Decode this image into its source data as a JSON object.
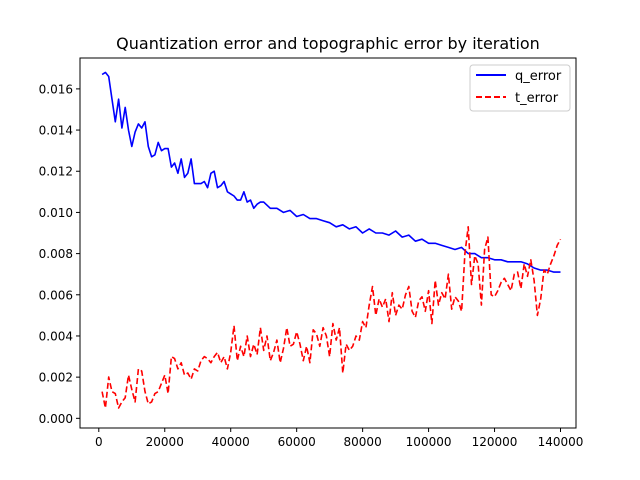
{
  "chart_data": {
    "type": "line",
    "title": "Quantization error and topographic error by iteration",
    "xlabel": "",
    "ylabel": "",
    "xlim": [
      -5700,
      144700
    ],
    "ylim": [
      -0.00047,
      0.0175
    ],
    "x_ticks": [
      0,
      20000,
      40000,
      60000,
      80000,
      100000,
      120000,
      140000
    ],
    "x_tick_labels": [
      "0",
      "20000",
      "40000",
      "60000",
      "80000",
      "100000",
      "120000",
      "140000"
    ],
    "y_ticks": [
      0.0,
      0.002,
      0.004,
      0.006,
      0.008,
      0.01,
      0.012,
      0.014,
      0.016
    ],
    "y_tick_labels": [
      "0.000",
      "0.002",
      "0.004",
      "0.006",
      "0.008",
      "0.010",
      "0.012",
      "0.014",
      "0.016"
    ],
    "grid": false,
    "legend_position": "upper right",
    "series": [
      {
        "name": "q_error",
        "color": "#0000ff",
        "style": "solid",
        "x": [
          1000,
          2000,
          3000,
          4000,
          5000,
          6000,
          7000,
          8000,
          9000,
          10000,
          11000,
          12000,
          13000,
          14000,
          15000,
          16000,
          17000,
          18000,
          19000,
          20000,
          21000,
          22000,
          23000,
          24000,
          25000,
          26000,
          27000,
          28000,
          29000,
          30000,
          31000,
          32000,
          33000,
          34000,
          35000,
          36000,
          37000,
          38000,
          39000,
          40000,
          41000,
          42000,
          43000,
          44000,
          45000,
          46000,
          47000,
          48000,
          49000,
          50000,
          52000,
          54000,
          56000,
          58000,
          60000,
          62000,
          64000,
          66000,
          68000,
          70000,
          72000,
          74000,
          76000,
          78000,
          80000,
          82000,
          84000,
          86000,
          88000,
          90000,
          92000,
          94000,
          96000,
          98000,
          100000,
          102000,
          104000,
          106000,
          108000,
          110000,
          112000,
          114000,
          116000,
          118000,
          120000,
          122000,
          124000,
          126000,
          128000,
          130000,
          132000,
          134000,
          136000,
          138000,
          140000
        ],
        "y": [
          0.0167,
          0.0168,
          0.0166,
          0.0155,
          0.0144,
          0.0155,
          0.0141,
          0.0151,
          0.014,
          0.0132,
          0.0139,
          0.0143,
          0.0141,
          0.0144,
          0.0132,
          0.0127,
          0.0128,
          0.0134,
          0.013,
          0.0131,
          0.0131,
          0.0122,
          0.0124,
          0.0119,
          0.0126,
          0.0117,
          0.0119,
          0.0126,
          0.0114,
          0.0114,
          0.0114,
          0.0115,
          0.0112,
          0.0119,
          0.012,
          0.0112,
          0.0113,
          0.0115,
          0.011,
          0.0109,
          0.0108,
          0.0106,
          0.0106,
          0.011,
          0.0105,
          0.0106,
          0.0102,
          0.0104,
          0.0105,
          0.0105,
          0.0102,
          0.0102,
          0.01,
          0.0101,
          0.0098,
          0.0099,
          0.0097,
          0.0097,
          0.0096,
          0.0095,
          0.0093,
          0.0094,
          0.0092,
          0.0093,
          0.009,
          0.0092,
          0.009,
          0.009,
          0.0089,
          0.0091,
          0.0088,
          0.0089,
          0.0086,
          0.0087,
          0.0085,
          0.0085,
          0.0084,
          0.0083,
          0.0082,
          0.0083,
          0.008,
          0.008,
          0.0078,
          0.0078,
          0.0077,
          0.0077,
          0.0076,
          0.0076,
          0.0076,
          0.0075,
          0.0073,
          0.0072,
          0.0072,
          0.0071,
          0.0071
        ]
      },
      {
        "name": "t_error",
        "color": "#ff0000",
        "style": "dashed",
        "x": [
          1000,
          2000,
          3000,
          4000,
          5000,
          6000,
          7000,
          8000,
          9000,
          10000,
          11000,
          12000,
          13000,
          14000,
          15000,
          16000,
          17000,
          18000,
          19000,
          20000,
          21000,
          22000,
          23000,
          24000,
          25000,
          26000,
          27000,
          28000,
          29000,
          30000,
          31000,
          32000,
          33000,
          34000,
          35000,
          36000,
          37000,
          38000,
          39000,
          40000,
          41000,
          42000,
          43000,
          44000,
          45000,
          46000,
          47000,
          48000,
          49000,
          50000,
          51000,
          52000,
          53000,
          54000,
          55000,
          56000,
          57000,
          58000,
          59000,
          60000,
          61000,
          62000,
          63000,
          64000,
          65000,
          66000,
          67000,
          68000,
          69000,
          70000,
          71000,
          72000,
          73000,
          74000,
          75000,
          76000,
          77000,
          78000,
          79000,
          80000,
          81000,
          82000,
          83000,
          84000,
          85000,
          86000,
          87000,
          88000,
          89000,
          90000,
          91000,
          92000,
          93000,
          94000,
          95000,
          96000,
          97000,
          98000,
          99000,
          100000,
          101000,
          102000,
          103000,
          104000,
          105000,
          106000,
          107000,
          108000,
          109000,
          110000,
          111000,
          112000,
          113000,
          114000,
          115000,
          116000,
          117000,
          118000,
          119000,
          120000,
          121000,
          122000,
          123000,
          124000,
          125000,
          126000,
          127000,
          128000,
          129000,
          130000,
          131000,
          132000,
          133000,
          134000,
          135000,
          136000,
          137000,
          138000,
          139000,
          140000
        ],
        "y": [
          0.0013,
          0.0005,
          0.002,
          0.0013,
          0.0012,
          0.0005,
          0.0008,
          0.001,
          0.0021,
          0.0014,
          0.0008,
          0.0024,
          0.0023,
          0.0013,
          0.0007,
          0.0008,
          0.0012,
          0.0013,
          0.0017,
          0.0021,
          0.0012,
          0.003,
          0.0029,
          0.0024,
          0.0027,
          0.0021,
          0.0022,
          0.0019,
          0.0024,
          0.0023,
          0.0028,
          0.003,
          0.0029,
          0.0027,
          0.003,
          0.0032,
          0.0027,
          0.003,
          0.0024,
          0.0032,
          0.0045,
          0.0028,
          0.0035,
          0.003,
          0.004,
          0.003,
          0.0036,
          0.0031,
          0.0044,
          0.0033,
          0.004,
          0.0028,
          0.0032,
          0.0038,
          0.0027,
          0.0034,
          0.0044,
          0.0035,
          0.0036,
          0.0042,
          0.0036,
          0.0028,
          0.0035,
          0.0027,
          0.0043,
          0.0041,
          0.0035,
          0.0044,
          0.004,
          0.003,
          0.0046,
          0.0038,
          0.0044,
          0.0022,
          0.0036,
          0.0033,
          0.0035,
          0.004,
          0.0038,
          0.0047,
          0.0044,
          0.0055,
          0.0064,
          0.005,
          0.0058,
          0.0054,
          0.0058,
          0.0047,
          0.0061,
          0.005,
          0.0055,
          0.0053,
          0.006,
          0.0064,
          0.0052,
          0.0049,
          0.0057,
          0.0059,
          0.0052,
          0.0062,
          0.0046,
          0.0067,
          0.0055,
          0.0061,
          0.0058,
          0.007,
          0.0053,
          0.0059,
          0.0057,
          0.0052,
          0.008,
          0.0093,
          0.0065,
          0.0079,
          0.0075,
          0.0055,
          0.0082,
          0.0088,
          0.006,
          0.0059,
          0.0062,
          0.0066,
          0.0068,
          0.0065,
          0.0062,
          0.007,
          0.0071,
          0.0063,
          0.0075,
          0.0069,
          0.0077,
          0.0067,
          0.005,
          0.0058,
          0.0072,
          0.007,
          0.0075,
          0.0079,
          0.0084,
          0.0087
        ]
      }
    ]
  }
}
